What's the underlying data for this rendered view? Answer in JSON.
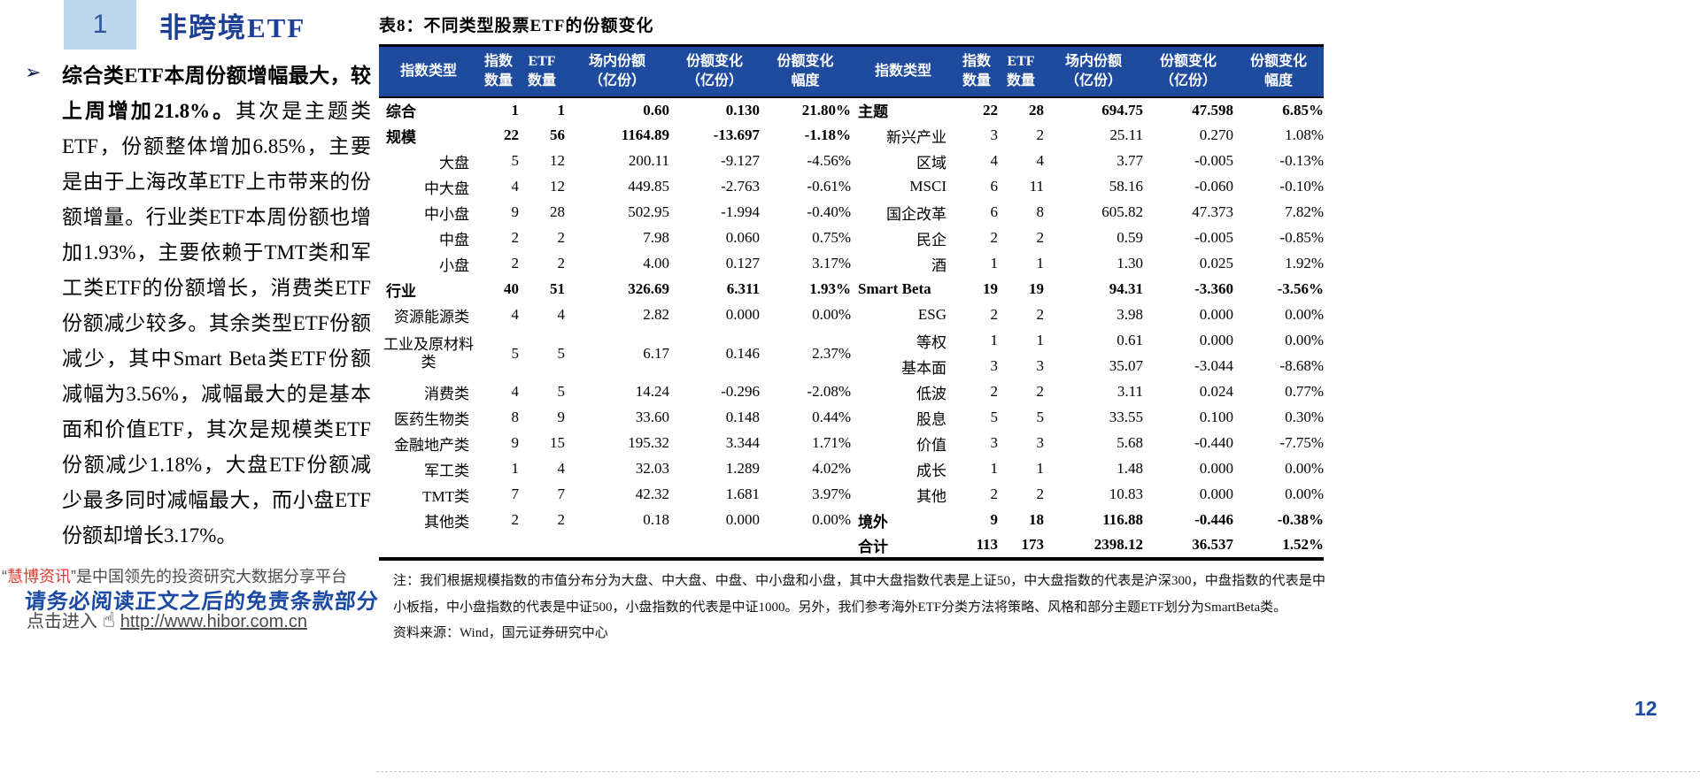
{
  "section": {
    "number": "1",
    "title": "非跨境ETF"
  },
  "paragraph": {
    "bullet": "➢",
    "bold": "综合类ETF本周份额增幅最大，较上周增加21.8%。",
    "rest": "其次是主题类ETF，份额整体增加6.85%，主要是由于上海改革ETF上市带来的份额增量。行业类ETF本周份额也增加1.93%，主要依赖于TMT类和军工类ETF的份额增长，消费类ETF份额减少较多。其余类型ETF份额减少，其中Smart Beta类ETF份额减幅为3.56%，减幅最大的是基本面和价值ETF，其次是规模类ETF份额减少1.18%，大盘ETF份额减少最多同时减幅最大，而小盘ETF份额却增长3.17%。"
  },
  "table": {
    "title": "表8：不同类型股票ETF的份额变化",
    "header_blue": "#1e4b9e",
    "headers": [
      {
        "l1": "指数类型",
        "l2": ""
      },
      {
        "l1": "指数",
        "l2": "数量"
      },
      {
        "l1": "ETF",
        "l2": "数量"
      },
      {
        "l1": "场内份额",
        "l2": "（亿份）"
      },
      {
        "l1": "份额变化",
        "l2": "（亿份）"
      },
      {
        "l1": "份额变化",
        "l2": "幅度"
      }
    ],
    "left_rows": [
      {
        "label": "综合",
        "bold": true,
        "cells": [
          "1",
          "1",
          "0.60",
          "0.130",
          "21.80%"
        ]
      },
      {
        "label": "规模",
        "bold": true,
        "cells": [
          "22",
          "56",
          "1164.89",
          "-13.697",
          "-1.18%"
        ]
      },
      {
        "label": "大盘",
        "cells": [
          "5",
          "12",
          "200.11",
          "-9.127",
          "-4.56%"
        ]
      },
      {
        "label": "中大盘",
        "cells": [
          "4",
          "12",
          "449.85",
          "-2.763",
          "-0.61%"
        ]
      },
      {
        "label": "中小盘",
        "cells": [
          "9",
          "28",
          "502.95",
          "-1.994",
          "-0.40%"
        ]
      },
      {
        "label": "中盘",
        "cells": [
          "2",
          "2",
          "7.98",
          "0.060",
          "0.75%"
        ]
      },
      {
        "label": "小盘",
        "cells": [
          "2",
          "2",
          "4.00",
          "0.127",
          "3.17%"
        ]
      },
      {
        "label": "行业",
        "bold": true,
        "cells": [
          "40",
          "51",
          "326.69",
          "6.311",
          "1.93%"
        ]
      },
      {
        "label": "资源能源类",
        "cells": [
          "4",
          "4",
          "2.82",
          "0.000",
          "0.00%"
        ]
      },
      {
        "label": "工业及原材料类",
        "tall": true,
        "wrap": true,
        "cells": [
          "5",
          "5",
          "6.17",
          "0.146",
          "2.37%"
        ]
      },
      {
        "label": "消费类",
        "cells": [
          "4",
          "5",
          "14.24",
          "-0.296",
          "-2.08%"
        ]
      },
      {
        "label": "医药生物类",
        "cells": [
          "8",
          "9",
          "33.60",
          "0.148",
          "0.44%"
        ]
      },
      {
        "label": "金融地产类",
        "cells": [
          "9",
          "15",
          "195.32",
          "3.344",
          "1.71%"
        ]
      },
      {
        "label": "军工类",
        "cells": [
          "1",
          "4",
          "32.03",
          "1.289",
          "4.02%"
        ]
      },
      {
        "label": "TMT类",
        "cells": [
          "7",
          "7",
          "42.32",
          "1.681",
          "3.97%"
        ]
      },
      {
        "label": "其他类",
        "cells": [
          "2",
          "2",
          "0.18",
          "0.000",
          "0.00%"
        ]
      },
      {
        "label": "",
        "filler": true,
        "cells": [
          "",
          "",
          "",
          "",
          ""
        ]
      }
    ],
    "right_rows": [
      {
        "label": "主题",
        "bold": true,
        "cells": [
          "22",
          "28",
          "694.75",
          "47.598",
          "6.85%"
        ]
      },
      {
        "label": "新兴产业",
        "cells": [
          "3",
          "2",
          "25.11",
          "0.270",
          "1.08%"
        ]
      },
      {
        "label": "区域",
        "cells": [
          "4",
          "4",
          "3.77",
          "-0.005",
          "-0.13%"
        ]
      },
      {
        "label": "MSCI",
        "cells": [
          "6",
          "11",
          "58.16",
          "-0.060",
          "-0.10%"
        ]
      },
      {
        "label": "国企改革",
        "cells": [
          "6",
          "8",
          "605.82",
          "47.373",
          "7.82%"
        ]
      },
      {
        "label": "民企",
        "cells": [
          "2",
          "2",
          "0.59",
          "-0.005",
          "-0.85%"
        ]
      },
      {
        "label": "酒",
        "cells": [
          "1",
          "1",
          "1.30",
          "0.025",
          "1.92%"
        ]
      },
      {
        "label": "Smart Beta",
        "bold": true,
        "cells": [
          "19",
          "19",
          "94.31",
          "-3.360",
          "-3.56%"
        ]
      },
      {
        "label": "ESG",
        "cells": [
          "2",
          "2",
          "3.98",
          "0.000",
          "0.00%"
        ]
      },
      {
        "label": "等权",
        "cells": [
          "1",
          "1",
          "0.61",
          "0.000",
          "0.00%"
        ]
      },
      {
        "label": "基本面",
        "cells": [
          "3",
          "3",
          "35.07",
          "-3.044",
          "-8.68%"
        ]
      },
      {
        "label": "低波",
        "cells": [
          "2",
          "2",
          "3.11",
          "0.024",
          "0.77%"
        ]
      },
      {
        "label": "股息",
        "cells": [
          "5",
          "5",
          "33.55",
          "0.100",
          "0.30%"
        ]
      },
      {
        "label": "价值",
        "cells": [
          "3",
          "3",
          "5.68",
          "-0.440",
          "-7.75%"
        ]
      },
      {
        "label": "成长",
        "cells": [
          "1",
          "1",
          "1.48",
          "0.000",
          "0.00%"
        ]
      },
      {
        "label": "其他",
        "cells": [
          "2",
          "2",
          "10.83",
          "0.000",
          "0.00%"
        ]
      },
      {
        "label": "境外",
        "bold": true,
        "cells": [
          "9",
          "18",
          "116.88",
          "-0.446",
          "-0.38%"
        ]
      },
      {
        "label": "合计",
        "bold": true,
        "cells": [
          "113",
          "173",
          "2398.12",
          "36.537",
          "1.52%"
        ]
      }
    ],
    "note": "注：我们根据规模指数的市值分布分为大盘、中大盘、中盘、中小盘和小盘，其中大盘指数代表是上证50，中大盘指数的代表是沪深300，中盘指数的代表是中小板指，中小盘指数的代表是中证500，小盘指数的代表是中证1000。另外，我们参考海外ETF分类方法将策略、风格和部分主题ETF划分为SmartBeta类。",
    "source": "资料来源：Wind，国元证券研究中心"
  },
  "footer": {
    "quote_open": "“",
    "brand": "慧博资讯",
    "quote_close": "”",
    "brand_line_rest": "是中国领先的投资研究大数据分享平台",
    "disclaimer": "请务必阅读正文之后的免责条款部分",
    "link_prefix": "点击进入",
    "hand_icon": "☝",
    "link_url": "http://www.hibor.com.cn",
    "page_number": "12"
  }
}
